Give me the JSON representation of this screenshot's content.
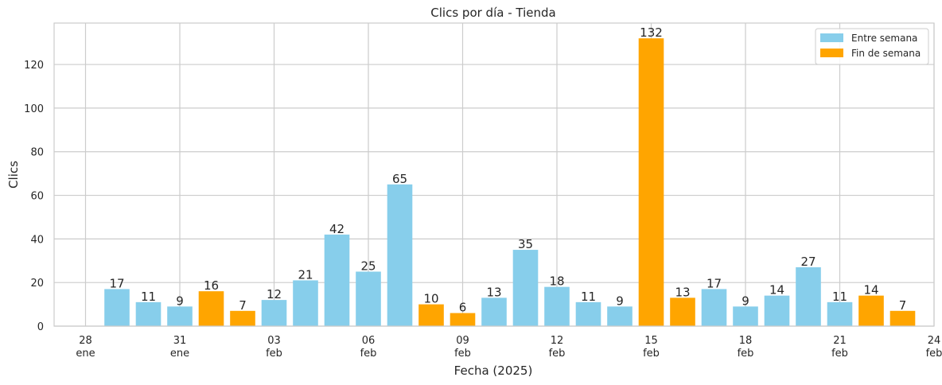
{
  "chart_data": {
    "type": "bar",
    "title": "Clics por día - Tienda",
    "xlabel": "Fecha (2025)",
    "ylabel": "Clics",
    "ylim": [
      0,
      139
    ],
    "yticks": [
      0,
      20,
      40,
      60,
      80,
      100,
      120
    ],
    "xlim": [
      "2025-01-27",
      "2025-02-24"
    ],
    "xticks": [
      {
        "date": "2025-01-28",
        "label": [
          "28",
          "ene"
        ]
      },
      {
        "date": "2025-01-31",
        "label": [
          "31",
          "ene"
        ]
      },
      {
        "date": "2025-02-03",
        "label": [
          "03",
          "feb"
        ]
      },
      {
        "date": "2025-02-06",
        "label": [
          "06",
          "feb"
        ]
      },
      {
        "date": "2025-02-09",
        "label": [
          "09",
          "feb"
        ]
      },
      {
        "date": "2025-02-12",
        "label": [
          "12",
          "feb"
        ]
      },
      {
        "date": "2025-02-15",
        "label": [
          "15",
          "feb"
        ]
      },
      {
        "date": "2025-02-18",
        "label": [
          "18",
          "feb"
        ]
      },
      {
        "date": "2025-02-21",
        "label": [
          "21",
          "feb"
        ]
      },
      {
        "date": "2025-02-24",
        "label": [
          "24",
          "feb"
        ]
      }
    ],
    "grid": true,
    "legend_position": "top-right",
    "legend": [
      {
        "name": "Entre semana",
        "color": "#87CEEB"
      },
      {
        "name": "Fin de semana",
        "color": "#FFA500"
      }
    ],
    "points": [
      {
        "date": "2025-01-29",
        "value": 17,
        "weekend": false
      },
      {
        "date": "2025-01-30",
        "value": 11,
        "weekend": false
      },
      {
        "date": "2025-01-31",
        "value": 9,
        "weekend": false
      },
      {
        "date": "2025-02-01",
        "value": 16,
        "weekend": true
      },
      {
        "date": "2025-02-02",
        "value": 7,
        "weekend": true
      },
      {
        "date": "2025-02-03",
        "value": 12,
        "weekend": false
      },
      {
        "date": "2025-02-04",
        "value": 21,
        "weekend": false
      },
      {
        "date": "2025-02-05",
        "value": 42,
        "weekend": false
      },
      {
        "date": "2025-02-06",
        "value": 25,
        "weekend": false
      },
      {
        "date": "2025-02-07",
        "value": 65,
        "weekend": false
      },
      {
        "date": "2025-02-08",
        "value": 10,
        "weekend": true
      },
      {
        "date": "2025-02-09",
        "value": 6,
        "weekend": true
      },
      {
        "date": "2025-02-10",
        "value": 13,
        "weekend": false
      },
      {
        "date": "2025-02-11",
        "value": 35,
        "weekend": false
      },
      {
        "date": "2025-02-12",
        "value": 18,
        "weekend": false
      },
      {
        "date": "2025-02-13",
        "value": 11,
        "weekend": false
      },
      {
        "date": "2025-02-14",
        "value": 9,
        "weekend": false
      },
      {
        "date": "2025-02-15",
        "value": 132,
        "weekend": true
      },
      {
        "date": "2025-02-16",
        "value": 13,
        "weekend": true
      },
      {
        "date": "2025-02-17",
        "value": 17,
        "weekend": false
      },
      {
        "date": "2025-02-18",
        "value": 9,
        "weekend": false
      },
      {
        "date": "2025-02-19",
        "value": 14,
        "weekend": false
      },
      {
        "date": "2025-02-20",
        "value": 27,
        "weekend": false
      },
      {
        "date": "2025-02-21",
        "value": 11,
        "weekend": false
      },
      {
        "date": "2025-02-22",
        "value": 14,
        "weekend": true
      },
      {
        "date": "2025-02-23",
        "value": 7,
        "weekend": true
      }
    ]
  }
}
